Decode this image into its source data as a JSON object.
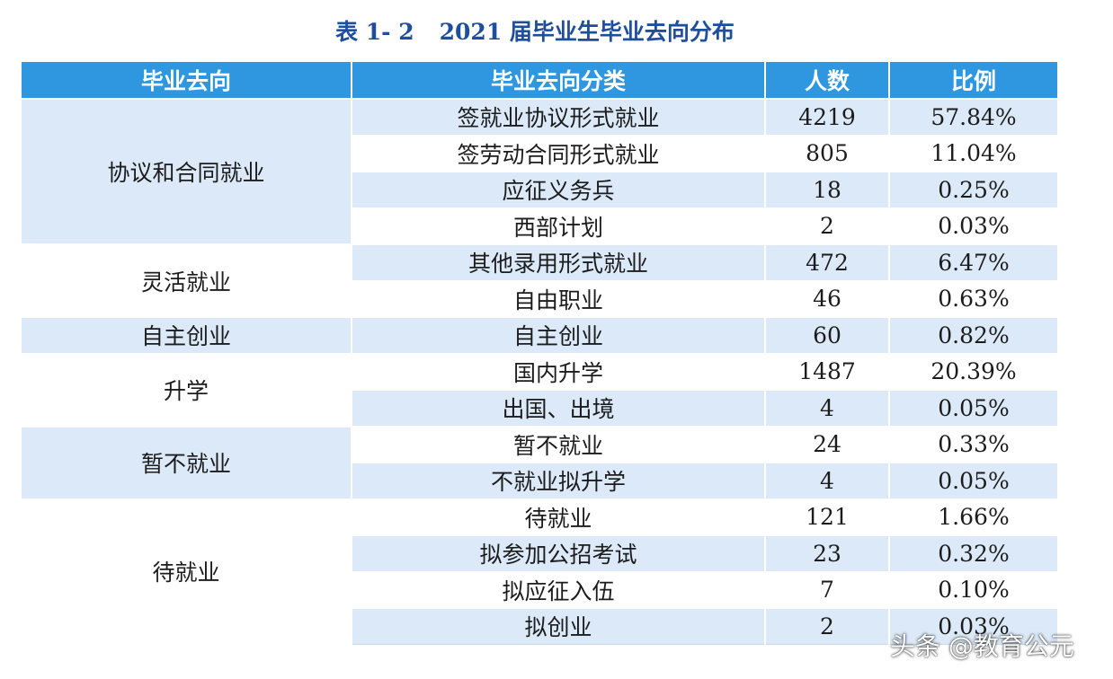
{
  "caption": {
    "label": "表 1- 2",
    "title": "2021 届毕业生毕业去向分布"
  },
  "columns": {
    "category": "毕业去向",
    "subcategory": "毕业去向分类",
    "count": "人数",
    "ratio": "比例"
  },
  "groups": [
    {
      "name": "协议和合同就业",
      "rows": [
        {
          "sub": "签就业协议形式就业",
          "count": "4219",
          "ratio": "57.84%"
        },
        {
          "sub": "签劳动合同形式就业",
          "count": "805",
          "ratio": "11.04%"
        },
        {
          "sub": "应征义务兵",
          "count": "18",
          "ratio": "0.25%"
        },
        {
          "sub": "西部计划",
          "count": "2",
          "ratio": "0.03%"
        }
      ]
    },
    {
      "name": "灵活就业",
      "rows": [
        {
          "sub": "其他录用形式就业",
          "count": "472",
          "ratio": "6.47%"
        },
        {
          "sub": "自由职业",
          "count": "46",
          "ratio": "0.63%"
        }
      ]
    },
    {
      "name": "自主创业",
      "rows": [
        {
          "sub": "自主创业",
          "count": "60",
          "ratio": "0.82%"
        }
      ]
    },
    {
      "name": "升学",
      "rows": [
        {
          "sub": "国内升学",
          "count": "1487",
          "ratio": "20.39%"
        },
        {
          "sub": "出国、出境",
          "count": "4",
          "ratio": "0.05%"
        }
      ]
    },
    {
      "name": "暂不就业",
      "rows": [
        {
          "sub": "暂不就业",
          "count": "24",
          "ratio": "0.33%"
        },
        {
          "sub": "不就业拟升学",
          "count": "4",
          "ratio": "0.05%"
        }
      ]
    },
    {
      "name": "待就业",
      "rows": [
        {
          "sub": "待就业",
          "count": "121",
          "ratio": "1.66%"
        },
        {
          "sub": "拟参加公招考试",
          "count": "23",
          "ratio": "0.32%"
        },
        {
          "sub": "拟应征入伍",
          "count": "7",
          "ratio": "0.10%"
        },
        {
          "sub": "拟创业",
          "count": "2",
          "ratio": "0.03%"
        }
      ]
    }
  ],
  "watermark": "头条 @教育公元",
  "colors": {
    "header_bg": "#2e97e0",
    "shade_bg": "#dbe9f8",
    "caption_text": "#1f4e9a"
  }
}
